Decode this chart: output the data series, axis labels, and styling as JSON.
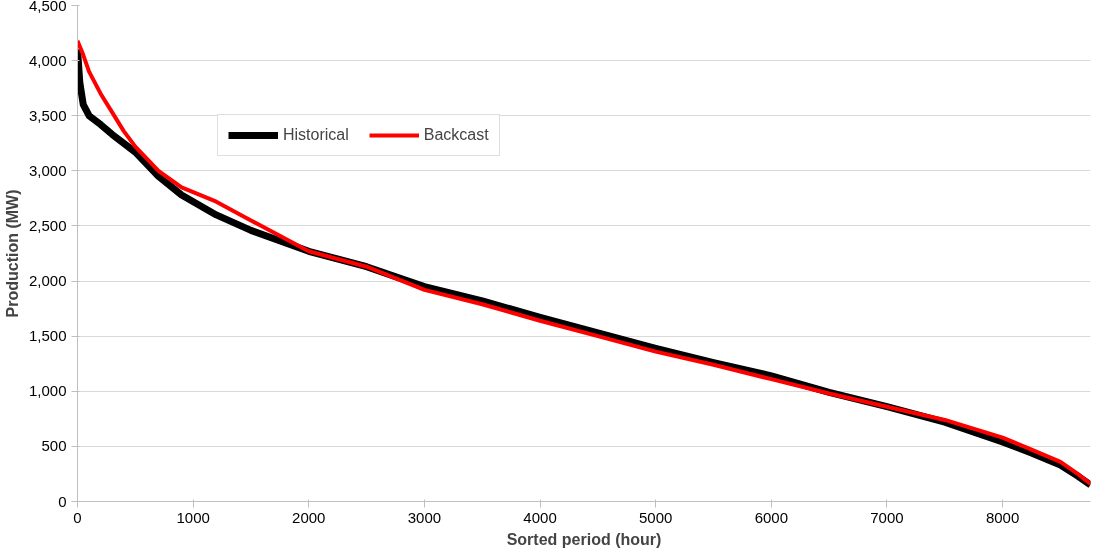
{
  "chart_data": {
    "type": "line",
    "xlabel": "Sorted period (hour)",
    "ylabel": "Production (MW)",
    "xlim": [
      0,
      8760
    ],
    "xticks": [
      0,
      1000,
      2000,
      3000,
      4000,
      5000,
      6000,
      7000,
      8000
    ],
    "ylim": [
      0,
      4500
    ],
    "yticks": [
      0,
      500,
      {
        "value": 1000,
        "label": "1,000"
      },
      {
        "value": 1500,
        "label": "1,500"
      },
      {
        "value": 2000,
        "label": "2,000"
      },
      {
        "value": 2500,
        "label": "2,500"
      },
      {
        "value": 3000,
        "label": "3,000"
      },
      {
        "value": 3500,
        "label": "3,500"
      },
      {
        "value": 4000,
        "label": "4,000"
      },
      {
        "value": 4500,
        "label": "4,500"
      }
    ],
    "grid": "y",
    "legend": "top left",
    "line_style": "solid",
    "marker": "none",
    "series": [
      {
        "name": "Historical",
        "color": "#000000",
        "x": [
          0,
          20,
          50,
          100,
          200,
          300,
          500,
          700,
          900,
          1200,
          1500,
          2000,
          2500,
          3000,
          3500,
          4000,
          4500,
          5000,
          5500,
          6000,
          6500,
          7000,
          7500,
          8000,
          8250,
          8500,
          8650,
          8760
        ],
        "values": [
          4100,
          3800,
          3600,
          3500,
          3420,
          3330,
          3170,
          2950,
          2780,
          2600,
          2460,
          2270,
          2130,
          1950,
          1820,
          1670,
          1530,
          1390,
          1260,
          1140,
          990,
          860,
          720,
          540,
          440,
          330,
          230,
          150
        ]
      },
      {
        "name": "Backcast",
        "color": "#ff0000",
        "x": [
          0,
          50,
          100,
          200,
          300,
          400,
          500,
          700,
          900,
          1200,
          1500,
          2000,
          2500,
          3000,
          3500,
          4000,
          4500,
          5000,
          5500,
          6000,
          6500,
          7000,
          7500,
          8000,
          8250,
          8500,
          8650,
          8760
        ],
        "values": [
          4180,
          4050,
          3900,
          3700,
          3530,
          3360,
          3220,
          3000,
          2850,
          2720,
          2550,
          2270,
          2130,
          1920,
          1790,
          1640,
          1500,
          1360,
          1240,
          1110,
          980,
          860,
          740,
          580,
          470,
          360,
          250,
          160
        ]
      }
    ]
  }
}
